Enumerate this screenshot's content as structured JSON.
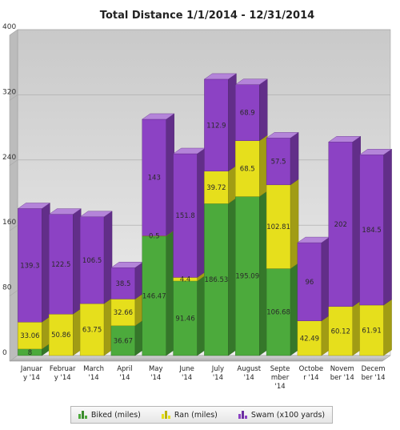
{
  "chart_data": {
    "type": "bar",
    "stacked": true,
    "three_d": true,
    "title": "Total Distance 1/1/2014 - 12/31/2014",
    "xlabel": "",
    "ylabel": "",
    "ylim": [
      0,
      400
    ],
    "y_ticks": [
      "0",
      "80",
      "160",
      "240",
      "320",
      "400"
    ],
    "grid": true,
    "legend_position": "bottom",
    "categories": [
      "Januar\ny '14",
      "Februar\ny '14",
      "March\n'14",
      "April\n'14",
      "May\n'14",
      "June\n'14",
      "July\n'14",
      "August\n'14",
      "Septe\nmber\n'14",
      "Octobe\nr '14",
      "Novem\nber '14",
      "Decem\nber '14"
    ],
    "series": [
      {
        "name": "Biked (miles)",
        "color": "#4caa3c",
        "values": [
          8,
          0,
          0,
          36.67,
          146.47,
          91.46,
          186.53,
          195.09,
          106.68,
          0,
          0,
          0
        ],
        "labels": [
          "8",
          "",
          "",
          "36.67",
          "146.47",
          "91.46",
          "186.53",
          "195.09",
          "106.68",
          "",
          "",
          ""
        ]
      },
      {
        "name": "Ran (miles)",
        "color": "#e6df1c",
        "values": [
          33.06,
          50.86,
          63.75,
          32.66,
          0.5,
          4.4,
          39.72,
          68.5,
          102.81,
          42.49,
          60.12,
          61.91
        ],
        "labels": [
          "33.06",
          "50.86",
          "63.75",
          "32.66",
          "0.5",
          "4.4",
          "39.72",
          "68.5",
          "102.81",
          "42.49",
          "60.12",
          "61.91"
        ]
      },
      {
        "name": "Swam (x100 yards)",
        "color": "#8c42c4",
        "values": [
          139.3,
          122.5,
          106.5,
          38.5,
          143,
          151.8,
          112.9,
          68.9,
          57.5,
          96,
          202,
          184.5
        ],
        "labels": [
          "139.3",
          "122.5",
          "106.5",
          "38.5",
          "143",
          "151.8",
          "112.9",
          "68.9",
          "57.5",
          "96",
          "202",
          "184.5"
        ]
      }
    ]
  }
}
